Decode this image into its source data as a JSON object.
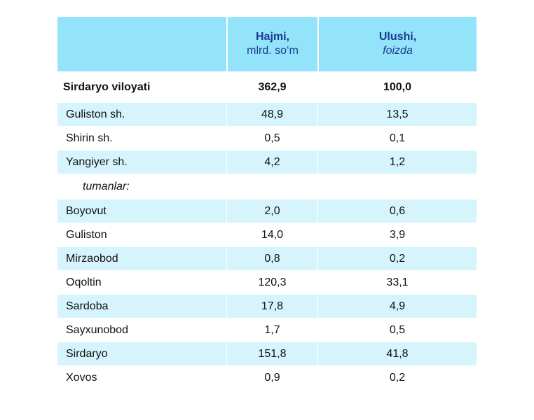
{
  "header": {
    "col2_title": "Hajmi,",
    "col2_sub": "mlrd. so‘m",
    "col3_title": "Ulushi,",
    "col3_sub": "foizda"
  },
  "total": {
    "name": "Sirdaryo viloyati",
    "volume": "362,9",
    "share": "100,0"
  },
  "cities": [
    {
      "name": "Guliston  sh.",
      "volume": "48,9",
      "share": "13,5"
    },
    {
      "name": "Shirin sh.",
      "volume": "0,5",
      "share": "0,1"
    },
    {
      "name": "Yangiyer sh.",
      "volume": "4,2",
      "share": "1,2"
    }
  ],
  "subheading": "tumanlar:",
  "districts": [
    {
      "name": "Boyovut",
      "volume": "2,0",
      "share": "0,6"
    },
    {
      "name": "Guliston",
      "volume": "14,0",
      "share": "3,9"
    },
    {
      "name": "Mirzaobod",
      "volume": "0,8",
      "share": "0,2"
    },
    {
      "name": "Oqoltin",
      "volume": "120,3",
      "share": "33,1"
    },
    {
      "name": "Sardoba",
      "volume": "17,8",
      "share": "4,9"
    },
    {
      "name": "Sayxunobod",
      "volume": "1,7",
      "share": "0,5"
    },
    {
      "name": "Sirdaryo",
      "volume": "151,8",
      "share": "41,8"
    },
    {
      "name": "Xovos",
      "volume": "0,9",
      "share": "0,2"
    }
  ],
  "colors": {
    "header_bg": "#93e3fb",
    "stripe_bg": "#d6f4fc",
    "header_text": "#1b3a8c"
  }
}
